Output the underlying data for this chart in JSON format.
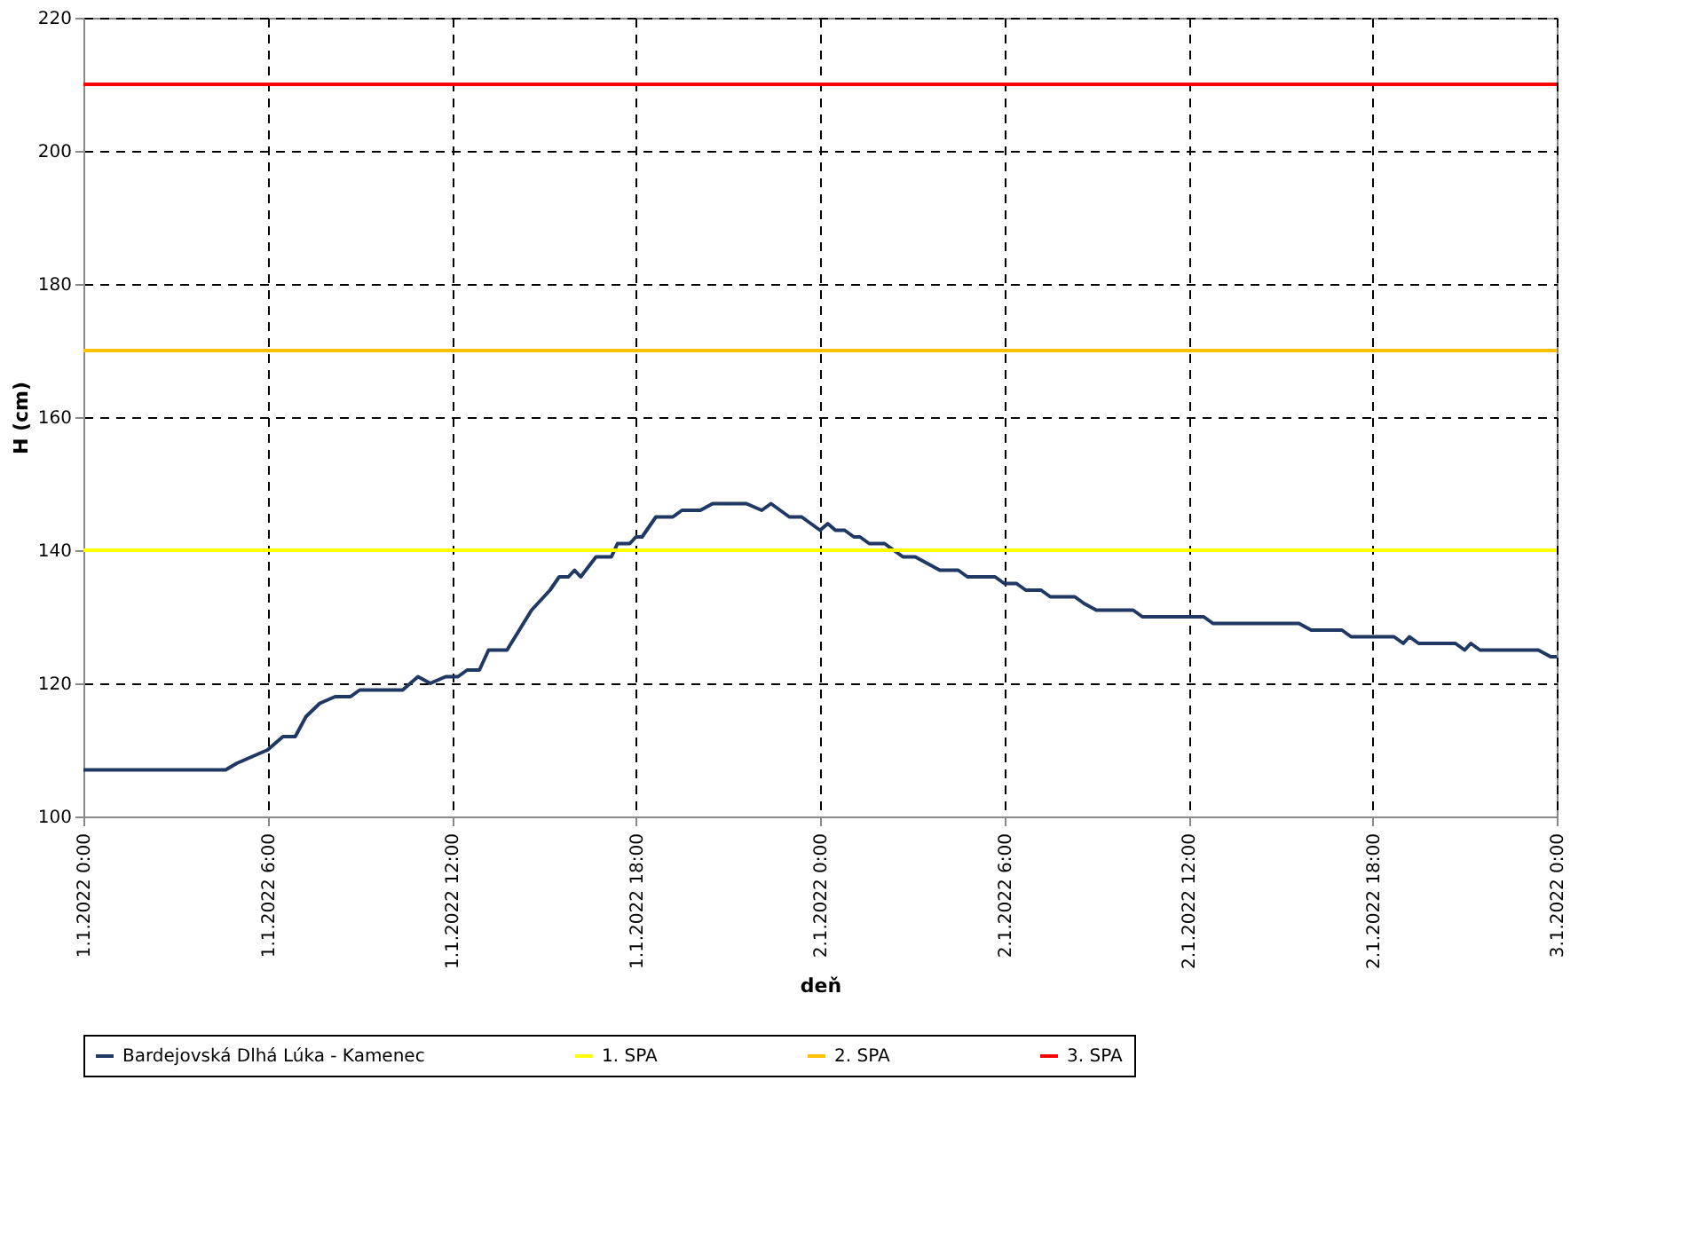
{
  "chart_data": {
    "type": "line",
    "xlabel": "deň",
    "ylabel": "H (cm)",
    "xlim": [
      "2022-01-01T00:00",
      "2022-01-03T00:00"
    ],
    "ylim": [
      100,
      220
    ],
    "xticks": [
      {
        "value": "2022-01-01T00:00",
        "label": "1.1.2022 0:00"
      },
      {
        "value": "2022-01-01T06:00",
        "label": "1.1.2022 6:00"
      },
      {
        "value": "2022-01-01T12:00",
        "label": "1.1.2022 12:00"
      },
      {
        "value": "2022-01-01T18:00",
        "label": "1.1.2022 18:00"
      },
      {
        "value": "2022-01-02T00:00",
        "label": "2.1.2022 0:00"
      },
      {
        "value": "2022-01-02T06:00",
        "label": "2.1.2022 6:00"
      },
      {
        "value": "2022-01-02T12:00",
        "label": "2.1.2022 12:00"
      },
      {
        "value": "2022-01-02T18:00",
        "label": "2.1.2022 18:00"
      },
      {
        "value": "2022-01-03T00:00",
        "label": "3.1.2022 0:00"
      }
    ],
    "yticks": [
      100,
      120,
      140,
      160,
      180,
      200,
      220
    ],
    "grid": true,
    "legend": "bottom",
    "line_style": "solid",
    "marker": "none",
    "series": [
      {
        "name": "Bardejovská Dlhá Lúka - Kamenec",
        "color": "#203864",
        "x": [
          "2022-01-01T00:00",
          "2022-01-01T04:38",
          "2022-01-01T05:00",
          "2022-01-01T05:30",
          "2022-01-01T06:00",
          "2022-01-01T06:30",
          "2022-01-01T06:54",
          "2022-01-01T07:15",
          "2022-01-01T07:42",
          "2022-01-01T08:12",
          "2022-01-01T08:42",
          "2022-01-01T09:00",
          "2022-01-01T10:24",
          "2022-01-01T10:54",
          "2022-01-01T11:18",
          "2022-01-01T11:48",
          "2022-01-01T12:12",
          "2022-01-01T12:30",
          "2022-01-01T12:54",
          "2022-01-01T13:12",
          "2022-01-01T13:48",
          "2022-01-01T14:36",
          "2022-01-01T15:12",
          "2022-01-01T15:30",
          "2022-01-01T15:48",
          "2022-01-01T16:00",
          "2022-01-01T16:12",
          "2022-01-01T16:42",
          "2022-01-01T17:12",
          "2022-01-01T17:24",
          "2022-01-01T17:48",
          "2022-01-01T18:00",
          "2022-01-01T18:12",
          "2022-01-01T18:39",
          "2022-01-01T19:12",
          "2022-01-01T19:30",
          "2022-01-01T20:06",
          "2022-01-01T20:30",
          "2022-01-01T21:36",
          "2022-01-01T22:06",
          "2022-01-01T22:24",
          "2022-01-01T23:00",
          "2022-01-01T23:24",
          "2022-01-02T00:00",
          "2022-01-02T00:15",
          "2022-01-02T00:30",
          "2022-01-02T00:48",
          "2022-01-02T01:06",
          "2022-01-02T01:18",
          "2022-01-02T01:36",
          "2022-01-02T02:06",
          "2022-01-02T02:42",
          "2022-01-02T03:06",
          "2022-01-02T03:30",
          "2022-01-02T03:54",
          "2022-01-02T04:30",
          "2022-01-02T04:48",
          "2022-01-02T05:42",
          "2022-01-02T06:00",
          "2022-01-02T06:24",
          "2022-01-02T06:42",
          "2022-01-02T07:12",
          "2022-01-02T07:30",
          "2022-01-02T08:18",
          "2022-01-02T08:36",
          "2022-01-02T09:00",
          "2022-01-02T10:12",
          "2022-01-02T10:30",
          "2022-01-02T12:30",
          "2022-01-02T12:48",
          "2022-01-02T15:36",
          "2022-01-02T16:00",
          "2022-01-02T17:00",
          "2022-01-02T17:18",
          "2022-01-02T18:42",
          "2022-01-02T19:00",
          "2022-01-02T19:12",
          "2022-01-02T19:30",
          "2022-01-02T20:42",
          "2022-01-02T21:00",
          "2022-01-02T21:12",
          "2022-01-02T21:30",
          "2022-01-02T23:24",
          "2022-01-02T23:48",
          "2022-01-03T00:00"
        ],
        "values": [
          107,
          107,
          108,
          109,
          110,
          112,
          112,
          115,
          117,
          118,
          118,
          119,
          119,
          121,
          120,
          121,
          121,
          122,
          122,
          125,
          125,
          131,
          134,
          136,
          136,
          137,
          136,
          139,
          139,
          141,
          141,
          142,
          142,
          145,
          145,
          146,
          146,
          147,
          147,
          146,
          147,
          145,
          145,
          143,
          144,
          143,
          143,
          142,
          142,
          141,
          141,
          139,
          139,
          138,
          137,
          137,
          136,
          136,
          135,
          135,
          134,
          134,
          133,
          133,
          132,
          131,
          131,
          130,
          130,
          129,
          129,
          128,
          128,
          127,
          127,
          126,
          127,
          126,
          126,
          125,
          126,
          125,
          125,
          124,
          124
        ]
      }
    ],
    "ref_lines": [
      {
        "axis": "y",
        "value": 140,
        "label": "1. SPA",
        "color": "#ffff00"
      },
      {
        "axis": "y",
        "value": 170,
        "label": "2. SPA",
        "color": "#ffc000"
      },
      {
        "axis": "y",
        "value": 210,
        "label": "3. SPA",
        "color": "#ff0000"
      }
    ]
  }
}
